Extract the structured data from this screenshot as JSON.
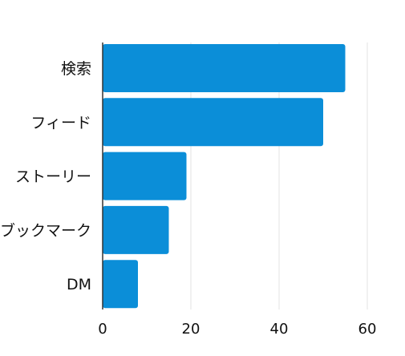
{
  "chart_data": {
    "type": "bar",
    "orientation": "horizontal",
    "categories": [
      "検索",
      "フィード",
      "ストーリー",
      "ブックマーク",
      "DM"
    ],
    "values": [
      55,
      50,
      19,
      15,
      8
    ],
    "title": "",
    "xlabel": "",
    "ylabel": "",
    "xlim": [
      0,
      66
    ],
    "xticks": [
      0,
      20,
      40,
      60
    ],
    "grid": "vertical",
    "legend": "none",
    "bar_color": "#0b8ed8",
    "grid_color": "#e3e3e3",
    "axis_color": "#333333"
  }
}
